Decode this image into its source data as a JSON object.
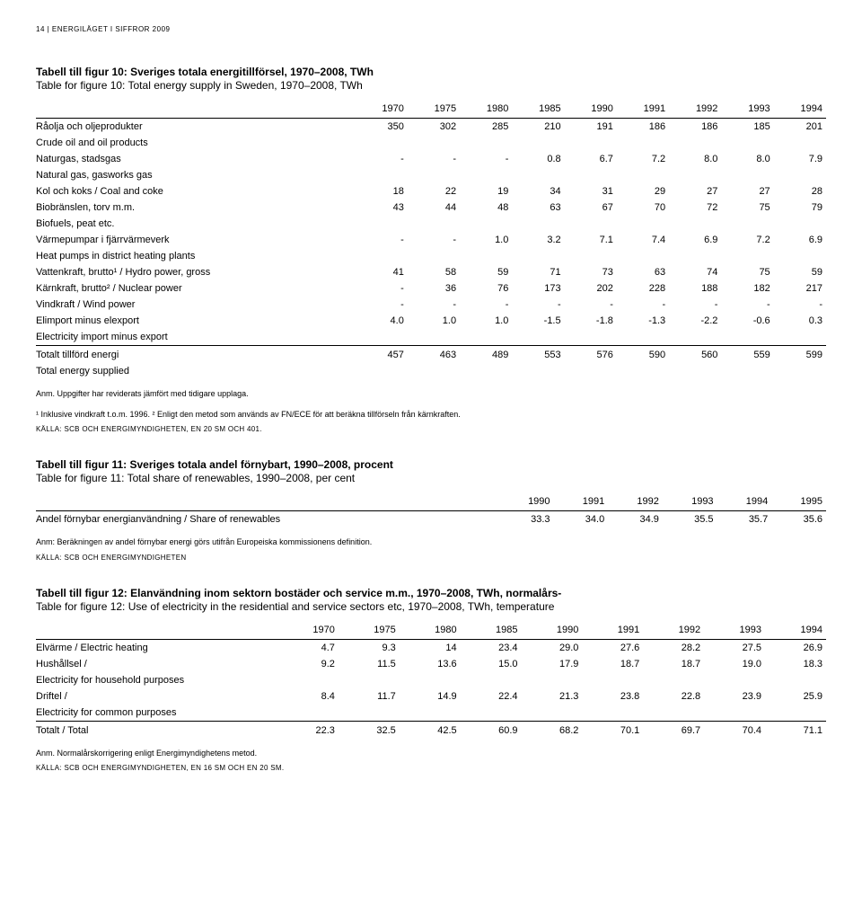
{
  "header": "14 | ENERGILÄGET I SIFFROR 2009",
  "table10": {
    "title_sv": "Tabell till figur 10: Sveriges totala energitillförsel, 1970–2008, TWh",
    "title_en": "Table for figure 10: Total energy supply in Sweden, 1970–2008, TWh",
    "years": [
      "1970",
      "1975",
      "1980",
      "1985",
      "1990",
      "1991",
      "1992",
      "1993",
      "1994"
    ],
    "rows": [
      {
        "label": "Råolja och oljeprodukter",
        "vals": [
          "350",
          "302",
          "285",
          "210",
          "191",
          "186",
          "186",
          "185",
          "201"
        ],
        "sub": "Crude oil and oil products"
      },
      {
        "label": "Naturgas, stadsgas",
        "vals": [
          "-",
          "-",
          "-",
          "0.8",
          "6.7",
          "7.2",
          "8.0",
          "8.0",
          "7.9"
        ],
        "sub": "Natural gas, gasworks gas"
      },
      {
        "label": "Kol och koks / Coal and coke",
        "vals": [
          "18",
          "22",
          "19",
          "34",
          "31",
          "29",
          "27",
          "27",
          "28"
        ]
      },
      {
        "label": "Biobränslen, torv m.m.",
        "vals": [
          "43",
          "44",
          "48",
          "63",
          "67",
          "70",
          "72",
          "75",
          "79"
        ],
        "sub": "Biofuels, peat etc."
      },
      {
        "label": "Värmepumpar i fjärrvärmeverk",
        "vals": [
          "-",
          "-",
          "1.0",
          "3.2",
          "7.1",
          "7.4",
          "6.9",
          "7.2",
          "6.9"
        ],
        "sub": "Heat pumps in district heating plants"
      },
      {
        "label": "Vattenkraft, brutto¹ / Hydro power, gross",
        "vals": [
          "41",
          "58",
          "59",
          "71",
          "73",
          "63",
          "74",
          "75",
          "59"
        ]
      },
      {
        "label": "Kärnkraft, brutto² / Nuclear power",
        "vals": [
          "-",
          "36",
          "76",
          "173",
          "202",
          "228",
          "188",
          "182",
          "217"
        ]
      },
      {
        "label": "Vindkraft / Wind power",
        "vals": [
          "-",
          "-",
          "-",
          "-",
          "-",
          "-",
          "-",
          "-",
          "-"
        ]
      },
      {
        "label": "Elimport minus elexport",
        "vals": [
          "4.0",
          "1.0",
          "1.0",
          "-1.5",
          "-1.8",
          "-1.3",
          "-2.2",
          "-0.6",
          "0.3"
        ],
        "sub": "Electricity import minus export"
      }
    ],
    "total": {
      "label": "Totalt tillförd energi",
      "vals": [
        "457",
        "463",
        "489",
        "553",
        "576",
        "590",
        "560",
        "559",
        "599"
      ],
      "sub": "Total energy supplied"
    },
    "note1": "Anm. Uppgifter har reviderats jämfört med tidigare upplaga.",
    "note2": "¹ Inklusive vindkraft t.o.m. 1996. ² Enligt den metod som används av FN/ECE för att beräkna tillförseln från kärnkraften.",
    "source": "KÄLLA: SCB OCH ENERGIMYNDIGHETEN, EN 20 SM OCH 401."
  },
  "table11": {
    "title_sv": "Tabell till figur 11: Sveriges totala andel förnybart, 1990–2008, procent",
    "title_en": "Table for figure 11: Total share of renewables, 1990–2008, per cent",
    "years": [
      "1990",
      "1991",
      "1992",
      "1993",
      "1994",
      "1995"
    ],
    "row": {
      "label": "Andel förnybar energianvändning / Share of renewables",
      "vals": [
        "33.3",
        "34.0",
        "34.9",
        "35.5",
        "35.7",
        "35.6"
      ]
    },
    "note": "Anm: Beräkningen av andel förnybar energi görs utifrån Europeiska kommissionens definition.",
    "source": "KÄLLA: SCB OCH ENERGIMYNDIGHETEN"
  },
  "table12": {
    "title_sv": "Tabell till figur 12: Elanvändning inom sektorn bostäder och service m.m., 1970–2008, TWh, normalårs-",
    "title_en": "Table for figure 12: Use of electricity in the residential and service sectors etc, 1970–2008, TWh, temperature",
    "years": [
      "1970",
      "1975",
      "1980",
      "1985",
      "1990",
      "1991",
      "1992",
      "1993",
      "1994"
    ],
    "rows": [
      {
        "label": "Elvärme / Electric heating",
        "vals": [
          "4.7",
          "9.3",
          "14",
          "23.4",
          "29.0",
          "27.6",
          "28.2",
          "27.5",
          "26.9"
        ]
      },
      {
        "label": "Hushållsel /",
        "vals": [
          "9.2",
          "11.5",
          "13.6",
          "15.0",
          "17.9",
          "18.7",
          "18.7",
          "19.0",
          "18.3"
        ],
        "sub": "Electricity for household purposes"
      },
      {
        "label": "Driftel /",
        "vals": [
          "8.4",
          "11.7",
          "14.9",
          "22.4",
          "21.3",
          "23.8",
          "22.8",
          "23.9",
          "25.9"
        ],
        "sub": "Electricity for common purposes"
      }
    ],
    "total": {
      "label": "Totalt / Total",
      "vals": [
        "22.3",
        "32.5",
        "42.5",
        "60.9",
        "68.2",
        "70.1",
        "69.7",
        "70.4",
        "71.1"
      ]
    },
    "note": "Anm. Normalårskorrigering enligt Energimyndighetens metod.",
    "source": "KÄLLA: SCB OCH ENERGIMYNDIGHETEN, EN 16 SM OCH EN 20 SM."
  }
}
